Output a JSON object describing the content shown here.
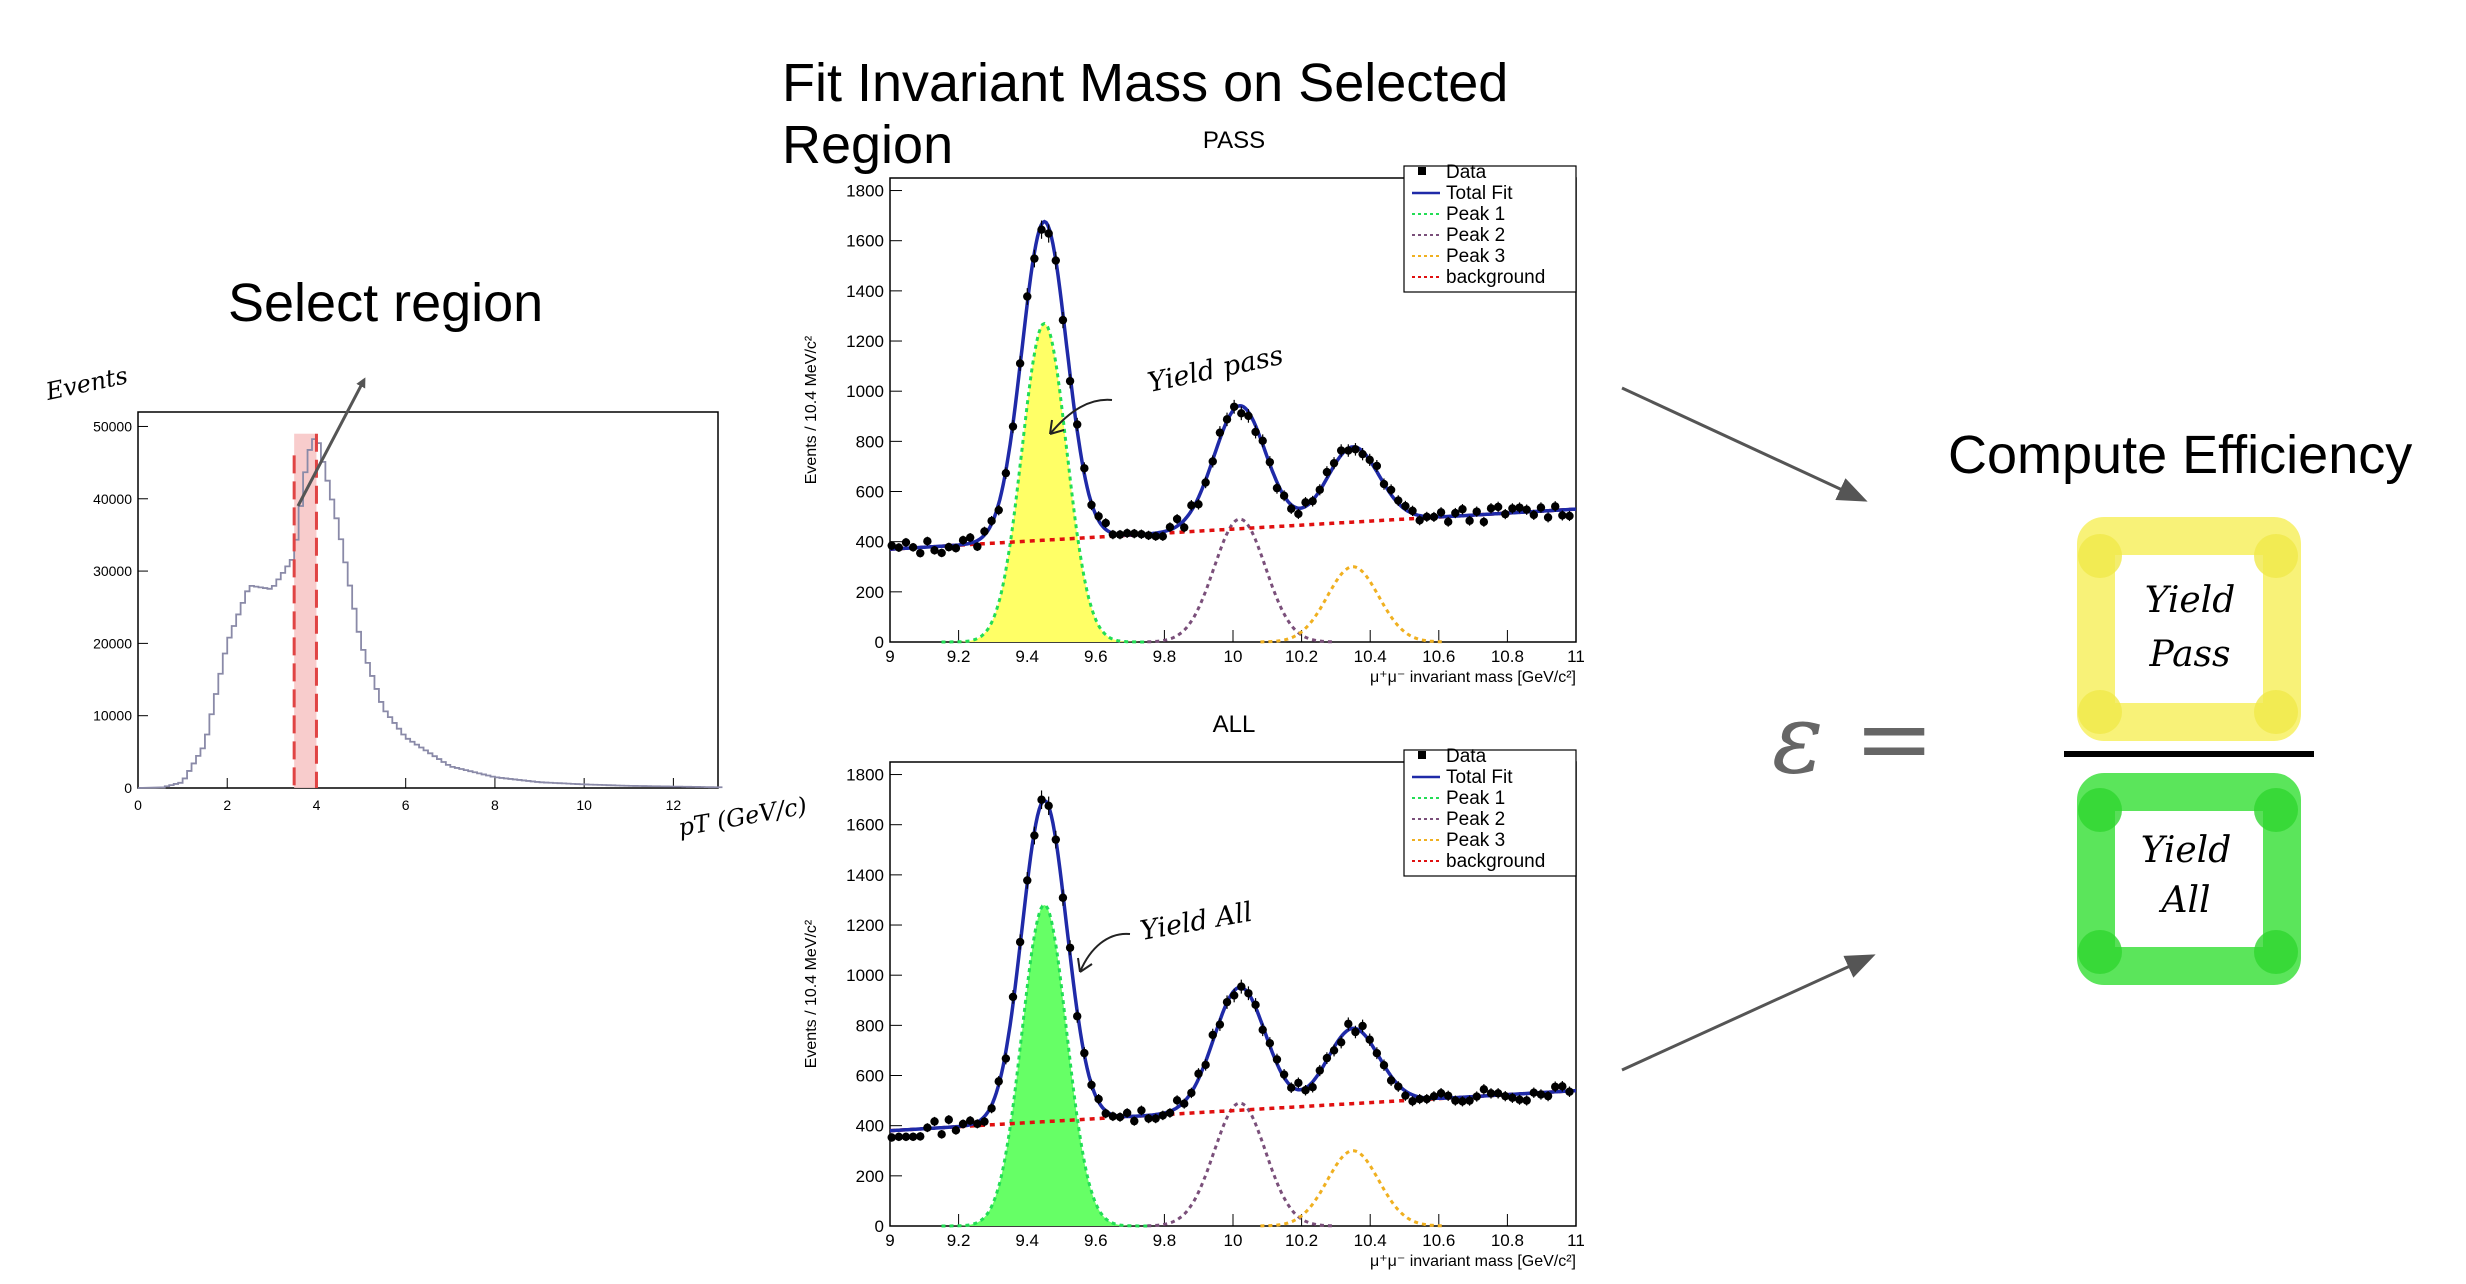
{
  "headings": {
    "select_region": "Select region",
    "fit_title": "Fit Invariant Mass on Selected Region",
    "compute": "Compute Efficiency"
  },
  "colors": {
    "pass_fill": "#ffff66",
    "all_fill": "#66ff66",
    "fit_line": "#1f2aa8",
    "peak1": "#22dd55",
    "peak2": "#7a4f7a",
    "peak3": "#f0b020",
    "background": "#e01010",
    "pt_hist": "#8a8aa8",
    "selection": "#e04444",
    "frac_yellow": "#f7f060",
    "frac_green": "#3ee03e"
  },
  "pt_plot": {
    "ylabel": "Events",
    "xlabel": "pT (GeV/c)",
    "y_ticks": [
      "50000",
      "40000",
      "30000",
      "20000",
      "10000",
      "0"
    ],
    "x_ticks": [
      "0",
      "2",
      "4",
      "6",
      "8",
      "10",
      "12"
    ]
  },
  "fit_plots": [
    {
      "title": "PASS",
      "annotation": "Yield pass",
      "ylabel": "Events / 10.4 MeV/c²",
      "xlabel": "μ⁺μ⁻ invariant mass [GeV/c²]"
    },
    {
      "title": "ALL",
      "annotation": "Yield All",
      "ylabel": "Events / 10.4 MeV/c²",
      "xlabel": "μ⁺μ⁻ invariant mass [GeV/c²]"
    }
  ],
  "legend": [
    "Data",
    "Total Fit",
    "Peak 1",
    "Peak 2",
    "Peak 3",
    "background"
  ],
  "mass_y_ticks": [
    "1800",
    "1600",
    "1400",
    "1200",
    "1000",
    "800",
    "600",
    "400",
    "200",
    "0"
  ],
  "mass_x_ticks": [
    "9",
    "9.2",
    "9.4",
    "9.6",
    "9.8",
    "10",
    "10.2",
    "10.4",
    "10.6",
    "10.8",
    "11"
  ],
  "formula": {
    "symbol": "ε =",
    "numerator_line1": "Yield",
    "numerator_line2": "Pass",
    "denominator_line1": "Yield",
    "denominator_line2": "All"
  },
  "chart_data": [
    {
      "type": "line",
      "title": "",
      "xlabel": "pT (GeV/c)",
      "ylabel": "Events",
      "xlim": [
        0,
        13
      ],
      "ylim": [
        0,
        52000
      ],
      "x": [
        0.5,
        1.0,
        1.5,
        2.0,
        2.5,
        3.0,
        3.5,
        3.8,
        4.0,
        4.5,
        5.0,
        5.5,
        6.0,
        7.0,
        8.0,
        9.0,
        10.0,
        11.0,
        12.0,
        13.0
      ],
      "series": [
        {
          "values": [
            0,
            800,
            6000,
            20000,
            28000,
            27500,
            32000,
            46000,
            49000,
            36000,
            20000,
            11000,
            7000,
            3000,
            1500,
            800,
            500,
            300,
            200,
            100
          ]
        }
      ],
      "selection": [
        3.5,
        4.0
      ]
    },
    {
      "type": "line",
      "title": "PASS",
      "xlabel": "μ⁺μ⁻ invariant mass [GeV/c²]",
      "ylabel": "Events / 10.4 MeV/c²",
      "xlim": [
        9,
        11
      ],
      "ylim": [
        0,
        1800
      ],
      "series": [
        {
          "name": "Peak 1",
          "mean": 9.45,
          "sigma": 0.065,
          "amplitude": 1270
        },
        {
          "name": "Peak 2",
          "mean": 10.02,
          "sigma": 0.075,
          "amplitude": 490
        },
        {
          "name": "Peak 3",
          "mean": 10.35,
          "sigma": 0.075,
          "amplitude": 300
        },
        {
          "name": "background",
          "start": 370,
          "end": 530
        }
      ]
    },
    {
      "type": "line",
      "title": "ALL",
      "xlabel": "μ⁺μ⁻ invariant mass [GeV/c²]",
      "ylabel": "Events / 10.4 MeV/c²",
      "xlim": [
        9,
        11
      ],
      "ylim": [
        0,
        1800
      ],
      "series": [
        {
          "name": "Peak 1",
          "mean": 9.45,
          "sigma": 0.065,
          "amplitude": 1280
        },
        {
          "name": "Peak 2",
          "mean": 10.02,
          "sigma": 0.075,
          "amplitude": 490
        },
        {
          "name": "Peak 3",
          "mean": 10.35,
          "sigma": 0.075,
          "amplitude": 300
        },
        {
          "name": "background",
          "start": 380,
          "end": 540
        }
      ]
    }
  ]
}
